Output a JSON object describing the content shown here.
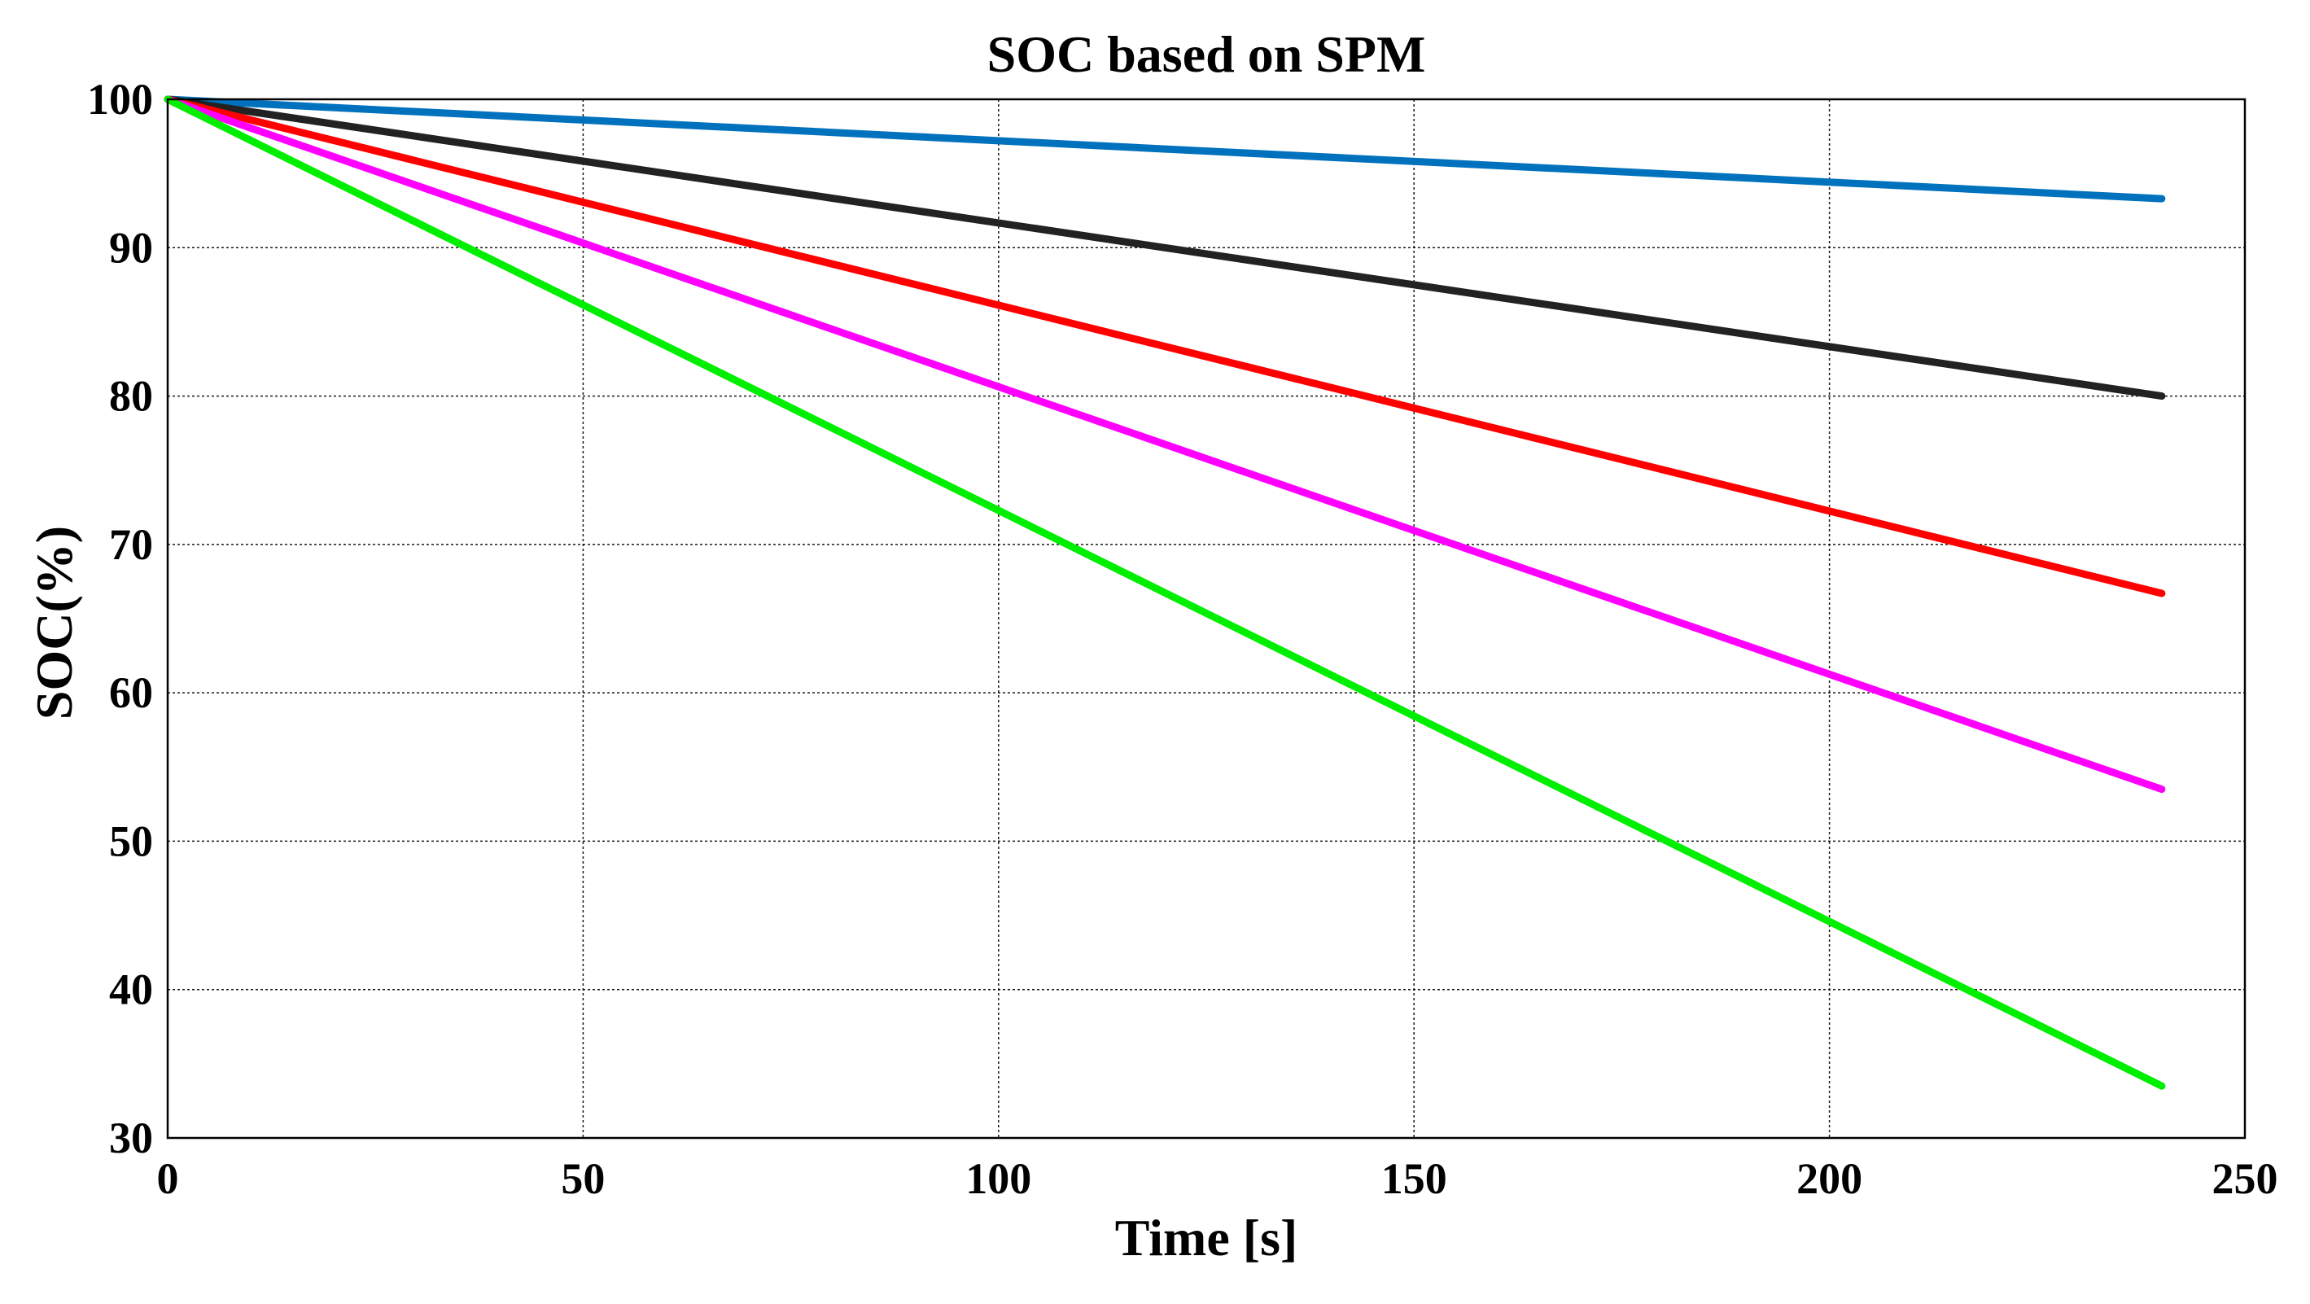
{
  "chart_data": {
    "type": "line",
    "title": "SOC based on SPM",
    "xlabel": "Time [s]",
    "ylabel": "SOC(%)",
    "xlim": [
      0,
      250
    ],
    "ylim": [
      30,
      100
    ],
    "xticks": [
      0,
      50,
      100,
      150,
      200,
      250
    ],
    "yticks": [
      30,
      40,
      50,
      60,
      70,
      80,
      90,
      100
    ],
    "grid": true,
    "x": [
      0,
      240
    ],
    "series": [
      {
        "name": "",
        "color": "#0072BD",
        "values": [
          100,
          93.3
        ]
      },
      {
        "name": "",
        "color": "#222222",
        "values": [
          100,
          80.0
        ]
      },
      {
        "name": "",
        "color": "#FF0000",
        "values": [
          100,
          66.7
        ]
      },
      {
        "name": "",
        "color": "#FF00FF",
        "values": [
          100,
          53.5
        ]
      },
      {
        "name": "",
        "color": "#00EE00",
        "values": [
          100,
          33.5
        ]
      }
    ]
  }
}
